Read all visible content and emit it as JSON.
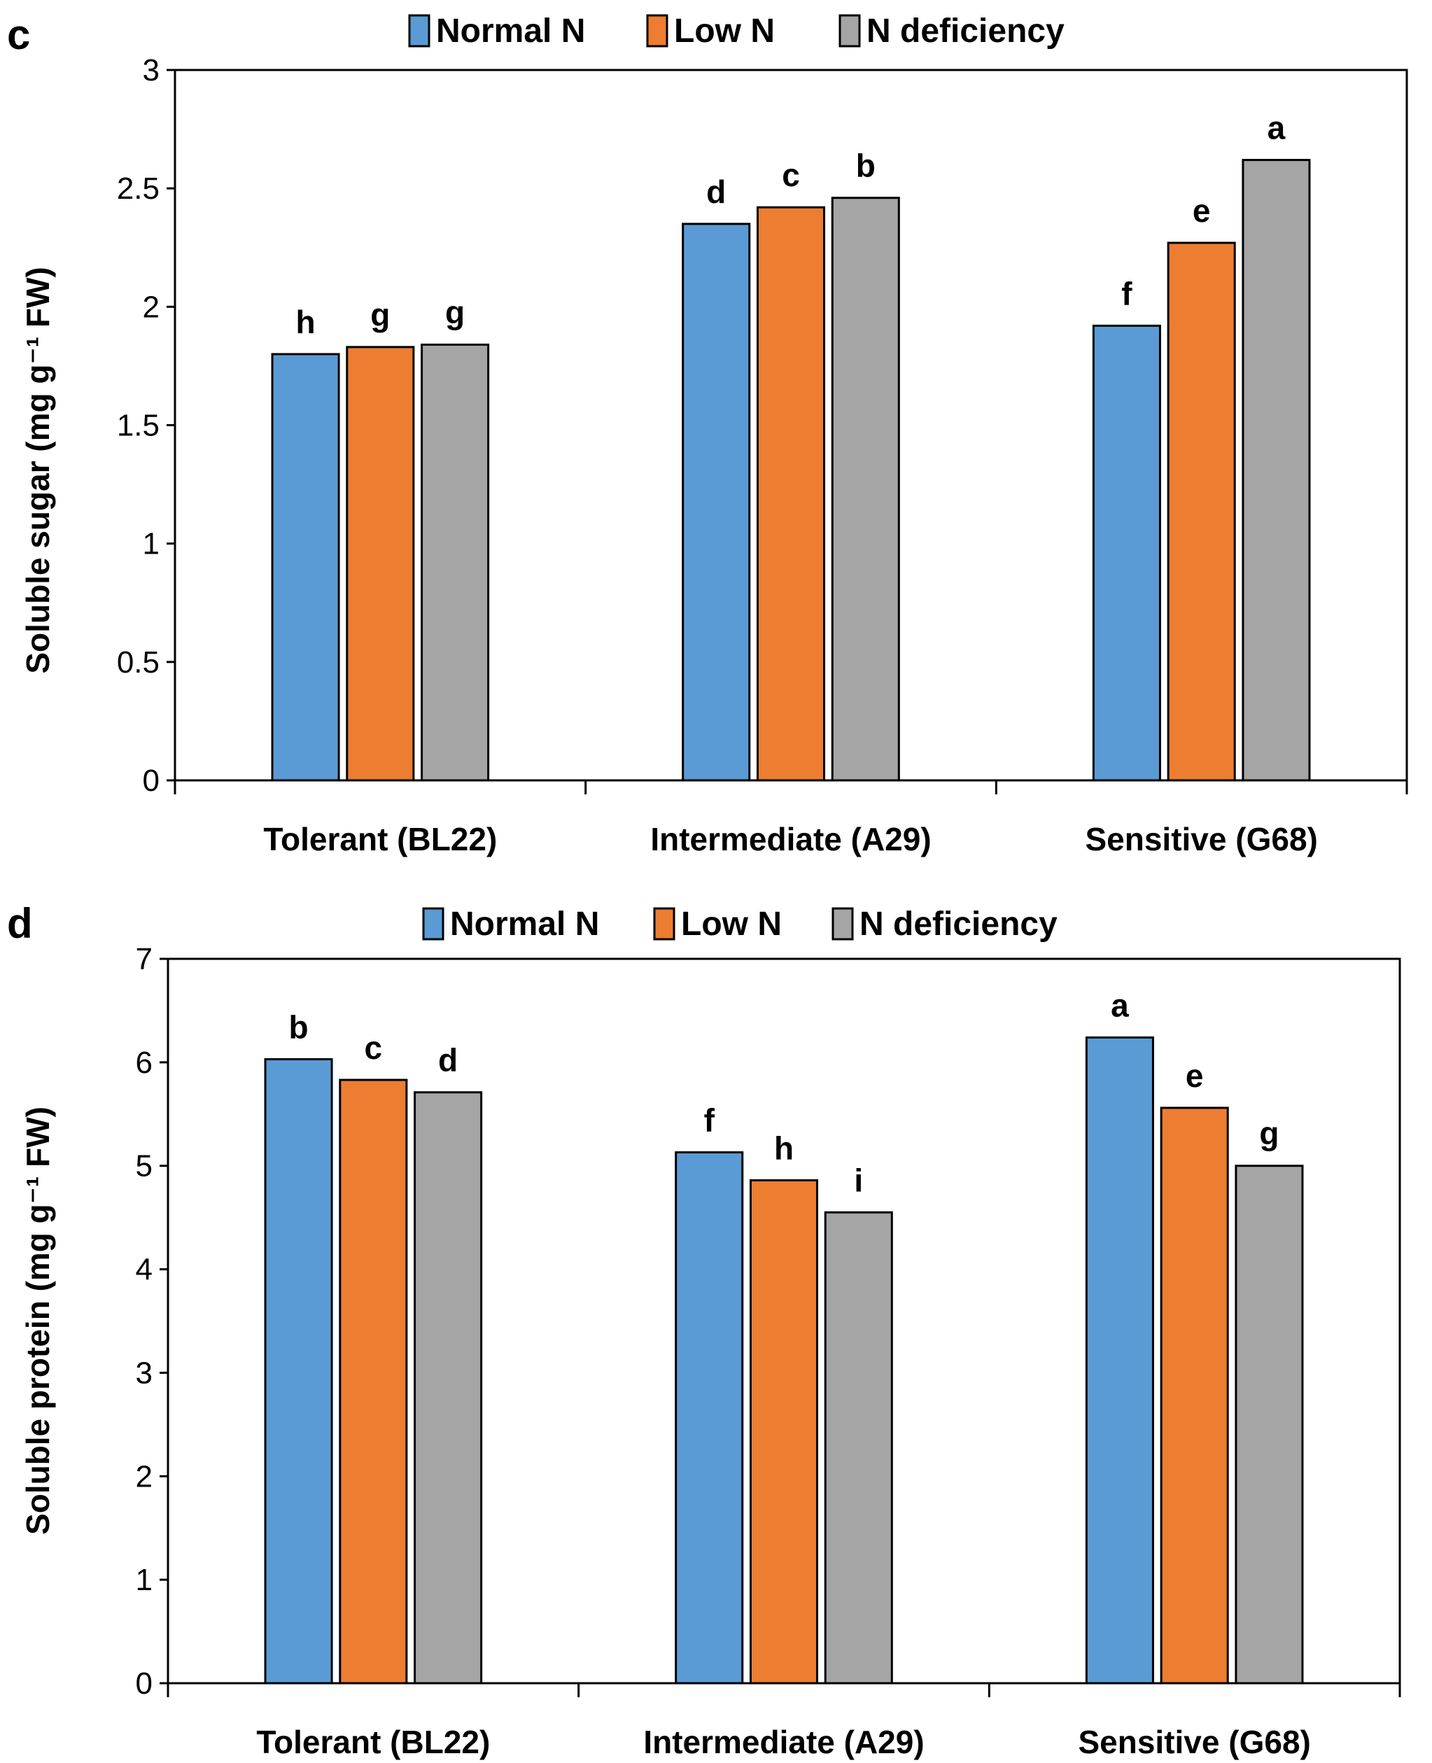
{
  "chart_data": [
    {
      "panel": "c",
      "type": "bar",
      "categories": [
        "Tolerant (BL22)",
        "Intermediate (A29)",
        "Sensitive (G68)"
      ],
      "series": [
        {
          "name": "Normal N",
          "color": "#5B9BD5",
          "values": [
            1.8,
            2.35,
            1.92
          ],
          "letters": [
            "h",
            "d",
            "f"
          ]
        },
        {
          "name": "Low N",
          "color": "#ED7D31",
          "values": [
            1.83,
            2.42,
            2.27
          ],
          "letters": [
            "g",
            "c",
            "e"
          ]
        },
        {
          "name": "N deficiency",
          "color": "#A5A5A5",
          "values": [
            1.84,
            2.46,
            2.62
          ],
          "letters": [
            "g",
            "b",
            "a"
          ]
        }
      ],
      "ylabel": "Soluble sugar (mg g⁻¹ FW)",
      "ylim": [
        0,
        3
      ],
      "yticks": [
        "0",
        "0.5",
        "1",
        "1.5",
        "2",
        "2.5",
        "3"
      ],
      "legend_position": "top"
    },
    {
      "panel": "d",
      "type": "bar",
      "categories": [
        "Tolerant (BL22)",
        "Intermediate (A29)",
        "Sensitive (G68)"
      ],
      "series": [
        {
          "name": "Normal N",
          "color": "#5B9BD5",
          "values": [
            6.03,
            5.13,
            6.24
          ],
          "letters": [
            "b",
            "f",
            "a"
          ]
        },
        {
          "name": "Low N",
          "color": "#ED7D31",
          "values": [
            5.83,
            4.86,
            5.56
          ],
          "letters": [
            "c",
            "h",
            "e"
          ]
        },
        {
          "name": "N deficiency",
          "color": "#A5A5A5",
          "values": [
            5.71,
            4.55,
            5.0
          ],
          "letters": [
            "d",
            "i",
            "g"
          ]
        }
      ],
      "ylabel": "Soluble protein (mg g⁻¹ FW)",
      "ylim": [
        0,
        7
      ],
      "yticks": [
        "0",
        "1",
        "2",
        "3",
        "4",
        "5",
        "6",
        "7"
      ],
      "legend_position": "top"
    }
  ]
}
